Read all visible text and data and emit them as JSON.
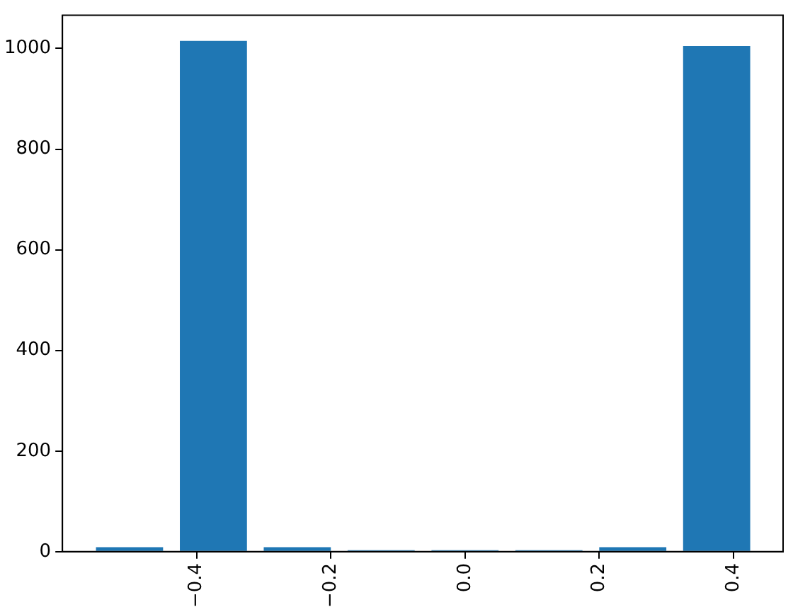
{
  "chart_data": {
    "type": "bar",
    "x": [
      -0.5,
      -0.375,
      -0.25,
      -0.125,
      0.0,
      0.125,
      0.25,
      0.375
    ],
    "values": [
      9,
      1015,
      9,
      3,
      3,
      3,
      9,
      1005
    ],
    "color": "#1f77b4",
    "xlim": [
      -0.6,
      0.474
    ],
    "xticks": [
      {
        "value": -0.4,
        "label": "−0.4"
      },
      {
        "value": -0.2,
        "label": "−0.2"
      },
      {
        "value": 0,
        "label": "0.0"
      },
      {
        "value": 0.2,
        "label": "0.2"
      },
      {
        "value": 0.4,
        "label": "0.4"
      }
    ],
    "ylim": [
      0,
      1066
    ],
    "yticks": [
      0,
      200,
      400,
      600,
      800,
      1000
    ],
    "grid": false,
    "legend": false
  }
}
